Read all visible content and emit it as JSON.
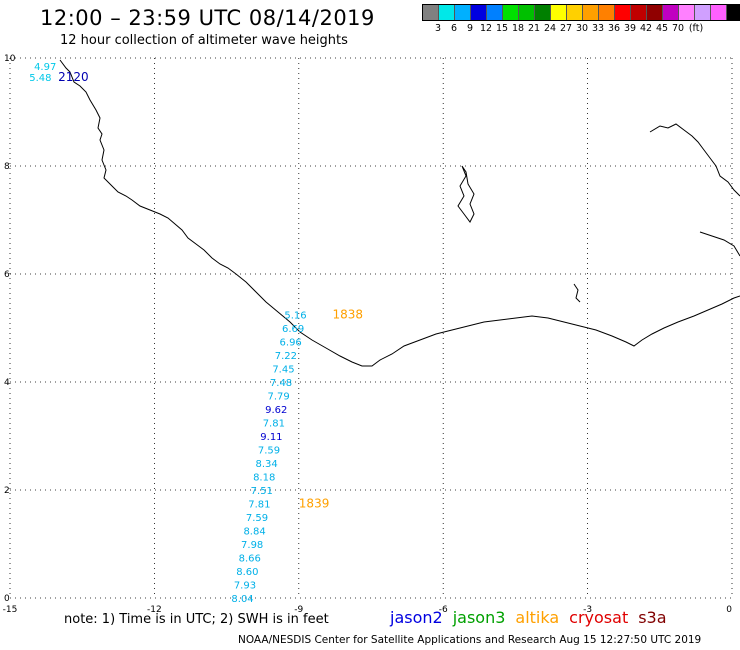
{
  "header": {
    "title": "12:00 – 23:59 UTC 08/14/2019",
    "subtitle": "12 hour collection of altimeter wave heights"
  },
  "legend": {
    "colors": [
      "#808080",
      "#00e8e8",
      "#00b0ff",
      "#0000e0",
      "#0080ff",
      "#00e000",
      "#00c000",
      "#008000",
      "#ffff00",
      "#ffd000",
      "#ffa000",
      "#ff8000",
      "#ff0000",
      "#c00000",
      "#900000",
      "#c000c0",
      "#ff80ff",
      "#d0a0ff",
      "#ff60ff",
      "#000000"
    ],
    "labels": [
      "3",
      "6",
      "9",
      "12",
      "15",
      "18",
      "21",
      "24",
      "27",
      "30",
      "33",
      "36",
      "39",
      "42",
      "45",
      "70",
      "(ft)"
    ]
  },
  "map": {
    "x_ticks": [
      "-15",
      "-12",
      "-9",
      "-6",
      "-3",
      "0"
    ],
    "y_ticks": [
      "0",
      "2",
      "4",
      "6",
      "8",
      "10"
    ],
    "grid_x": [
      -15,
      -12,
      -9,
      -6,
      -3,
      0
    ],
    "grid_y": [
      0,
      2,
      4,
      6,
      8,
      10
    ]
  },
  "observations": [
    {
      "value": "4.97",
      "lon": -14.5,
      "lat": 9.85,
      "color": "#00c8e8"
    },
    {
      "value": "5.48",
      "lon": -14.6,
      "lat": 9.65,
      "color": "#00c8e8"
    },
    {
      "value": "2120",
      "lon": -14.0,
      "lat": 9.65,
      "color": "#0000b0",
      "time": true
    },
    {
      "value": "5.16",
      "lon": -9.3,
      "lat": 5.25,
      "color": "#00b0e8"
    },
    {
      "value": "1838",
      "lon": -8.3,
      "lat": 5.25,
      "color": "#ffa000",
      "time": true
    },
    {
      "value": "6.69",
      "lon": -9.35,
      "lat": 5.0,
      "color": "#00b0e8"
    },
    {
      "value": "6.96",
      "lon": -9.4,
      "lat": 4.75,
      "color": "#00b0e8"
    },
    {
      "value": "7.22",
      "lon": -9.5,
      "lat": 4.5,
      "color": "#00b0e8"
    },
    {
      "value": "7.45",
      "lon": -9.55,
      "lat": 4.25,
      "color": "#00b0e8"
    },
    {
      "value": "7.48",
      "lon": -9.6,
      "lat": 4.0,
      "color": "#00b0e8"
    },
    {
      "value": "7.79",
      "lon": -9.65,
      "lat": 3.75,
      "color": "#00b0e8"
    },
    {
      "value": "9.62",
      "lon": -9.7,
      "lat": 3.5,
      "color": "#0000d0"
    },
    {
      "value": "7.81",
      "lon": -9.75,
      "lat": 3.25,
      "color": "#00b0e8"
    },
    {
      "value": "9.11",
      "lon": -9.8,
      "lat": 3.0,
      "color": "#0000d0"
    },
    {
      "value": "7.59",
      "lon": -9.85,
      "lat": 2.75,
      "color": "#00b0e8"
    },
    {
      "value": "8.34",
      "lon": -9.9,
      "lat": 2.5,
      "color": "#00b0e8"
    },
    {
      "value": "8.18",
      "lon": -9.95,
      "lat": 2.25,
      "color": "#00b0e8"
    },
    {
      "value": "7.51",
      "lon": -10.0,
      "lat": 2.0,
      "color": "#00b0e8"
    },
    {
      "value": "7.81",
      "lon": -10.05,
      "lat": 1.75,
      "color": "#00b0e8"
    },
    {
      "value": "1839",
      "lon": -9.0,
      "lat": 1.75,
      "color": "#ffa000",
      "time": true
    },
    {
      "value": "7.59",
      "lon": -10.1,
      "lat": 1.5,
      "color": "#00b0e8"
    },
    {
      "value": "8.84",
      "lon": -10.15,
      "lat": 1.25,
      "color": "#00b0e8"
    },
    {
      "value": "7.98",
      "lon": -10.2,
      "lat": 1.0,
      "color": "#00b0e8"
    },
    {
      "value": "8.66",
      "lon": -10.25,
      "lat": 0.75,
      "color": "#00b0e8"
    },
    {
      "value": "8.60",
      "lon": -10.3,
      "lat": 0.5,
      "color": "#00b0e8"
    },
    {
      "value": "7.93",
      "lon": -10.35,
      "lat": 0.25,
      "color": "#00b0e8"
    },
    {
      "value": "8.04",
      "lon": -10.4,
      "lat": 0.0,
      "color": "#00b0e8"
    }
  ],
  "footer": {
    "note": "note:  1) Time is in UTC; 2) SWH is in feet",
    "satellites": [
      {
        "name": "jason2",
        "color": "#0000e0"
      },
      {
        "name": "jason3",
        "color": "#00a000"
      },
      {
        "name": "altika",
        "color": "#ffa000"
      },
      {
        "name": "cryosat",
        "color": "#e00000"
      },
      {
        "name": "s3a",
        "color": "#800000"
      }
    ],
    "credit": "NOAA/NESDIS Center for Satellite Applications and Research     Aug 15 12:27:50 UTC 2019"
  }
}
